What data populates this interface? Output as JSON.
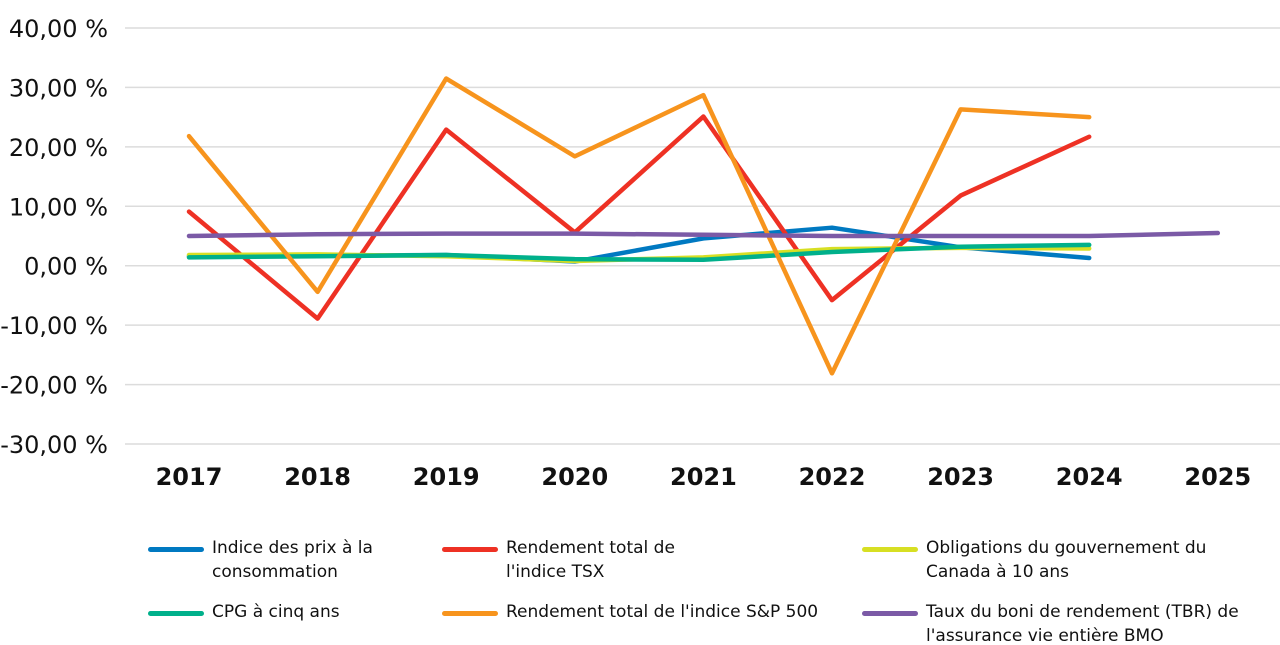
{
  "chart_data": {
    "type": "line",
    "title": "",
    "xlabel": "",
    "ylabel": "",
    "categories": [
      "2017",
      "2018",
      "2019",
      "2020",
      "2021",
      "2022",
      "2023",
      "2024",
      "2025"
    ],
    "ylim": [
      -30,
      40
    ],
    "yticks": [
      40,
      30,
      20,
      10,
      0,
      -10,
      -20,
      -30
    ],
    "ytick_labels": [
      "40,00 %",
      "30,00 %",
      "20,00 %",
      "10,00 %",
      "0,00 %",
      "-10,00 %",
      "-20,00 %",
      "-30,00 %"
    ],
    "grid": true,
    "legend_position": "bottom",
    "series": [
      {
        "name": "Indice des prix à la consommation",
        "color": "#0079C1",
        "values": [
          1.6,
          1.7,
          1.8,
          0.7,
          4.6,
          6.4,
          3.1,
          1.3,
          null
        ]
      },
      {
        "name": "Rendement total de l'indice TSX",
        "color": "#EE3124",
        "values": [
          9.1,
          -8.9,
          22.9,
          5.6,
          25.1,
          -5.8,
          11.8,
          21.7,
          null
        ]
      },
      {
        "name": "Obligations du gouvernement du Canada à 10 ans",
        "color": "#D7DF23",
        "values": [
          1.8,
          1.9,
          1.6,
          0.8,
          1.4,
          2.8,
          3.0,
          2.9,
          null
        ]
      },
      {
        "name": "CPG à cinq ans",
        "color": "#00B08B",
        "values": [
          1.4,
          1.6,
          1.8,
          1.1,
          1.0,
          2.3,
          3.2,
          3.5,
          null
        ]
      },
      {
        "name": "Rendement total de l'indice S&P 500",
        "color": "#F7941D",
        "values": [
          21.8,
          -4.4,
          31.5,
          18.4,
          28.7,
          -18.1,
          26.3,
          25.0,
          null
        ]
      },
      {
        "name": "Taux du boni de rendement (TBR) de l'assurance vie entière BMO",
        "color": "#7B5AA6",
        "values": [
          5.0,
          5.3,
          5.4,
          5.4,
          5.2,
          5.0,
          5.0,
          5.0,
          5.5
        ]
      }
    ]
  },
  "legend": {
    "items": [
      {
        "line1": "Indice des prix à la",
        "line2": "consommation",
        "color": "#0079C1"
      },
      {
        "line1": "Rendement total de",
        "line2": "l'indice TSX",
        "color": "#EE3124"
      },
      {
        "line1": "Obligations du gouvernement du",
        "line2": "Canada à 10 ans",
        "color": "#D7DF23"
      },
      {
        "line1": "CPG à cinq ans",
        "line2": "",
        "color": "#00B08B"
      },
      {
        "line1": "Rendement total de l'indice S&P 500",
        "line2": "",
        "color": "#F7941D"
      },
      {
        "line1": "Taux du boni de rendement (TBR) de",
        "line2": "l'assurance vie entière BMO",
        "color": "#7B5AA6"
      }
    ]
  }
}
